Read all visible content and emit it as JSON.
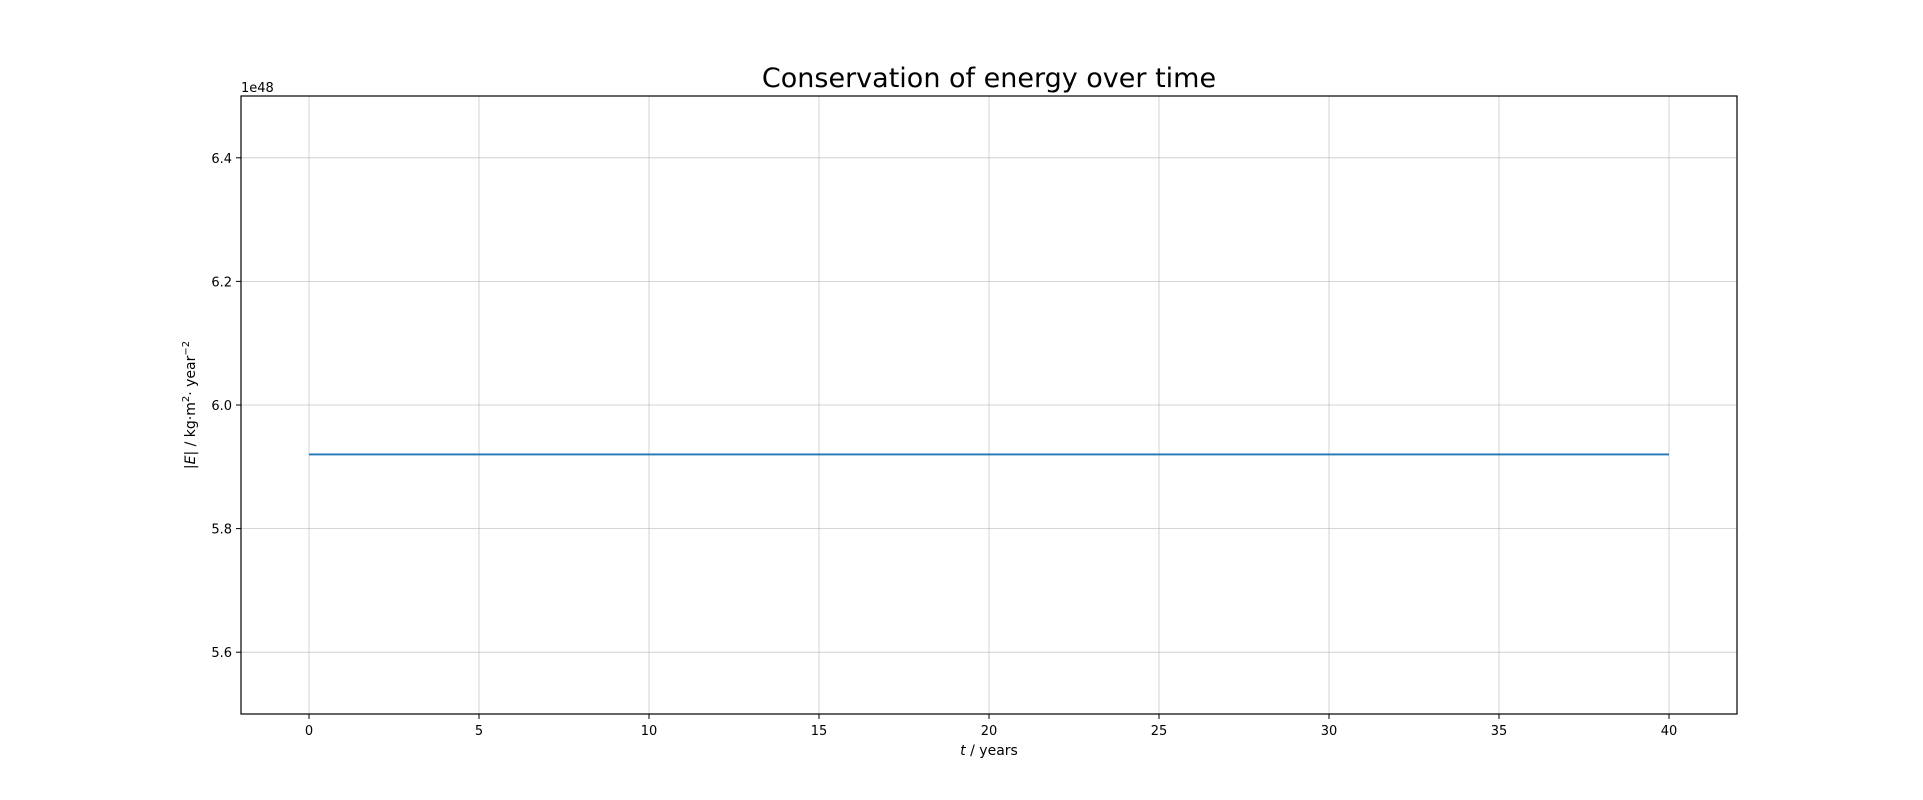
{
  "chart_data": {
    "type": "line",
    "title": "Conservation of energy over time",
    "xlabel": {
      "var": "t",
      "unit": " / years"
    },
    "ylabel": {
      "pre": "|",
      "var": "E",
      "post": "| / kg·m",
      "sup1": "2",
      "mid": "· year",
      "sup2": "−2"
    },
    "y_offset_label": "1e48",
    "xlim": [
      -2,
      42
    ],
    "ylim": [
      5.5,
      6.5
    ],
    "x_ticks": [
      0,
      5,
      10,
      15,
      20,
      25,
      30,
      35,
      40
    ],
    "x_tick_labels": [
      "0",
      "5",
      "10",
      "15",
      "20",
      "25",
      "30",
      "35",
      "40"
    ],
    "y_ticks": [
      5.6,
      5.8,
      6.0,
      6.2,
      6.4
    ],
    "y_tick_labels": [
      "5.6",
      "5.8",
      "6.0",
      "6.2",
      "6.4"
    ],
    "grid": true,
    "series": [
      {
        "color": "#1f77b4",
        "x": [
          0,
          40
        ],
        "y": [
          5.92,
          5.92
        ]
      }
    ]
  }
}
